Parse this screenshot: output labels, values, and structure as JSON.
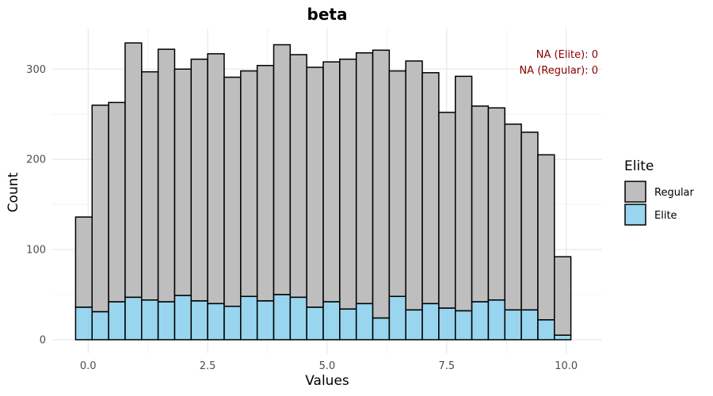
{
  "chart_data": {
    "type": "bar",
    "title": "beta",
    "xlabel": "Values",
    "ylabel": "Count",
    "xlim": [
      -0.75,
      10.75
    ],
    "ylim": [
      -15,
      345
    ],
    "x_ticks": [
      0,
      2.5,
      5,
      7.5,
      10
    ],
    "x_tick_labels": [
      "0.0",
      "2.5",
      "5.0",
      "7.5",
      "10.0"
    ],
    "y_ticks": [
      0,
      100,
      200,
      300
    ],
    "y_tick_labels": [
      "0",
      "100",
      "200",
      "300"
    ],
    "grid": true,
    "bin_width": 0.345,
    "bin_centers": [
      -0.09,
      0.2553,
      0.6007,
      0.946,
      1.2914,
      1.6367,
      1.982,
      2.3274,
      2.6727,
      3.018,
      3.3634,
      3.7087,
      4.0541,
      4.3994,
      4.7447,
      5.0901,
      5.4354,
      5.7807,
      6.1261,
      6.4714,
      6.8168,
      7.1621,
      7.5074,
      7.8528,
      8.1981,
      8.5434,
      8.8888,
      9.2341,
      9.5795,
      9.9248,
      10.2701
    ],
    "series": [
      {
        "name": "Regular",
        "color": "#bebebe",
        "values": [
          100,
          229,
          221,
          282,
          253,
          280,
          251,
          268,
          277,
          254,
          250,
          261,
          277,
          269,
          266,
          266,
          277,
          278,
          297,
          250,
          276,
          256,
          217,
          260,
          217,
          213,
          206,
          197,
          183,
          87,
          0
        ]
      },
      {
        "name": "Elite",
        "color": "#87ceeb",
        "values": [
          36,
          31,
          42,
          47,
          44,
          42,
          49,
          43,
          40,
          37,
          48,
          43,
          50,
          47,
          36,
          42,
          34,
          40,
          24,
          48,
          33,
          40,
          35,
          32,
          42,
          44,
          33,
          33,
          22,
          5,
          0
        ]
      }
    ],
    "stacked": true,
    "legend": {
      "title": "Elite",
      "position": "right",
      "entries": [
        {
          "label": "Regular",
          "color": "#bebebe"
        },
        {
          "label": "Elite",
          "color": "#87ceeb"
        }
      ]
    },
    "annotations": [
      {
        "text": "NA (Elite): 0",
        "color": "#8b0000"
      },
      {
        "text": "NA (Regular): 0",
        "color": "#8b0000"
      }
    ]
  }
}
